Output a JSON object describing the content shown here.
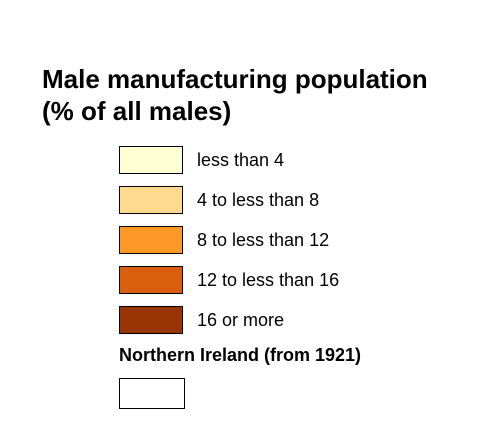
{
  "legend": {
    "title_line1": "Male manufacturing population",
    "title_line2": "(% of all males)",
    "items": [
      {
        "label": "less than 4",
        "color": "#FFFFD4"
      },
      {
        "label": "4 to less than 8",
        "color": "#FED98E"
      },
      {
        "label": "8 to less than 12",
        "color": "#FE9929"
      },
      {
        "label": "12 to less than 16",
        "color": "#D95F0E"
      },
      {
        "label": "16 or more",
        "color": "#993404"
      }
    ],
    "northern_ireland": {
      "label": "Northern Ireland (from 1921)",
      "color": "#FFFFFF"
    }
  }
}
